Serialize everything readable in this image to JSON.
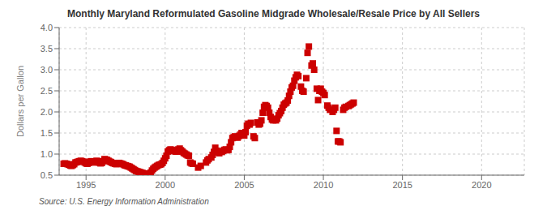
{
  "chart_data": {
    "type": "scatter",
    "title": "Monthly Maryland Reformulated Gasoline Midgrade Wholesale/Resale Price by All Sellers",
    "ylabel": "Dollars per Gallon",
    "source": "Source: U.S. Energy Information Administration",
    "color": "#cc0000",
    "marker": "square",
    "grid": true,
    "xlim": [
      1993.3,
      2022.7
    ],
    "ylim": [
      0.5,
      4.0
    ],
    "xticks": [
      1995,
      2000,
      2005,
      2010,
      2015,
      2020
    ],
    "yticks": [
      0.5,
      {
        "value": 1.0,
        "label": "1.0"
      },
      1.5,
      {
        "value": 2.0,
        "label": "2.0"
      },
      2.5,
      {
        "value": 3.0,
        "label": "3.0"
      },
      3.5,
      {
        "value": 4.0,
        "label": "4.0"
      }
    ],
    "x": [
      1993.583,
      1993.667,
      1993.75,
      1993.833,
      1993.917,
      1994.0,
      1994.083,
      1994.167,
      1994.25,
      1994.333,
      1994.417,
      1994.5,
      1994.583,
      1994.667,
      1994.75,
      1994.833,
      1994.917,
      1995.0,
      1995.083,
      1995.167,
      1995.25,
      1995.333,
      1995.417,
      1995.5,
      1995.583,
      1995.667,
      1995.75,
      1995.833,
      1995.917,
      1996.0,
      1996.083,
      1996.167,
      1996.25,
      1996.333,
      1996.417,
      1996.5,
      1996.583,
      1996.667,
      1996.75,
      1996.833,
      1996.917,
      1997.0,
      1997.083,
      1997.167,
      1997.25,
      1997.333,
      1997.417,
      1997.5,
      1997.583,
      1997.667,
      1997.75,
      1997.833,
      1997.917,
      1998.0,
      1998.083,
      1998.167,
      1998.25,
      1998.333,
      1998.417,
      1998.5,
      1998.583,
      1998.667,
      1998.75,
      1998.833,
      1998.917,
      1999.0,
      1999.083,
      1999.167,
      1999.25,
      1999.333,
      1999.417,
      1999.5,
      1999.583,
      1999.667,
      1999.75,
      1999.833,
      1999.917,
      2000.0,
      2000.083,
      2000.167,
      2000.25,
      2000.333,
      2000.417,
      2000.5,
      2000.583,
      2000.667,
      2000.75,
      2000.833,
      2000.917,
      2001.0,
      2001.083,
      2001.167,
      2001.25,
      2001.333,
      2001.417,
      2001.5,
      2001.583,
      2001.667,
      2001.75,
      2002.083,
      2002.25,
      2002.583,
      2002.667,
      2002.75,
      2002.917,
      2003.0,
      2003.083,
      2003.167,
      2003.25,
      2003.333,
      2003.417,
      2003.583,
      2003.667,
      2003.75,
      2003.833,
      2003.917,
      2004.0,
      2004.083,
      2004.167,
      2004.25,
      2004.333,
      2004.417,
      2004.5,
      2004.583,
      2004.667,
      2004.75,
      2004.833,
      2004.917,
      2005.0,
      2005.083,
      2005.167,
      2005.25,
      2005.333,
      2005.417,
      2005.583,
      2005.667,
      2005.833,
      2005.917,
      2006.0,
      2006.083,
      2006.167,
      2006.25,
      2006.333,
      2006.417,
      2006.5,
      2006.583,
      2006.667,
      2006.75,
      2006.833,
      2006.917,
      2007.0,
      2007.083,
      2007.167,
      2007.25,
      2007.333,
      2007.417,
      2007.5,
      2007.583,
      2007.667,
      2007.75,
      2007.833,
      2007.917,
      2008.0,
      2008.083,
      2008.167,
      2008.25,
      2008.333,
      2008.417,
      2008.583,
      2008.667,
      2008.75,
      2008.917,
      2009.0,
      2009.083,
      2009.25,
      2009.333,
      2009.417,
      2009.583,
      2009.667,
      2009.75,
      2009.833,
      2009.917,
      2010.0,
      2010.083,
      2010.25,
      2010.333,
      2010.417,
      2010.583,
      2010.667,
      2010.75,
      2010.833,
      2010.917,
      2011.0,
      2011.083,
      2011.25,
      2011.333,
      2011.417,
      2011.583,
      2011.667,
      2011.75,
      2011.833,
      2011.917
    ],
    "values": [
      0.77,
      0.78,
      0.77,
      0.76,
      0.75,
      0.73,
      0.72,
      0.74,
      0.76,
      0.8,
      0.81,
      0.82,
      0.83,
      0.84,
      0.83,
      0.82,
      0.8,
      0.78,
      0.77,
      0.79,
      0.82,
      0.83,
      0.82,
      0.8,
      0.82,
      0.84,
      0.83,
      0.8,
      0.78,
      0.79,
      0.83,
      0.88,
      0.87,
      0.86,
      0.84,
      0.82,
      0.81,
      0.79,
      0.78,
      0.77,
      0.76,
      0.77,
      0.79,
      0.78,
      0.77,
      0.76,
      0.74,
      0.73,
      0.72,
      0.71,
      0.7,
      0.68,
      0.66,
      0.64,
      0.62,
      0.6,
      0.59,
      0.58,
      0.57,
      0.56,
      0.55,
      0.54,
      0.53,
      0.52,
      0.52,
      0.53,
      0.56,
      0.61,
      0.65,
      0.68,
      0.7,
      0.72,
      0.74,
      0.75,
      0.76,
      0.79,
      0.84,
      0.9,
      0.96,
      1.06,
      1.09,
      1.11,
      1.1,
      1.08,
      1.07,
      1.06,
      1.06,
      1.11,
      1.13,
      1.09,
      1.06,
      1.03,
      1.01,
      0.99,
      0.97,
      0.96,
      0.8,
      0.78,
      0.77,
      0.68,
      0.72,
      0.8,
      0.85,
      0.88,
      0.92,
      0.98,
      1.05,
      1.15,
      1.08,
      1.05,
      1.02,
      1.05,
      1.08,
      1.1,
      1.11,
      1.09,
      1.1,
      1.17,
      1.28,
      1.38,
      1.4,
      1.42,
      1.4,
      1.39,
      1.43,
      1.46,
      1.5,
      1.46,
      1.44,
      1.52,
      1.67,
      1.72,
      1.7,
      1.74,
      1.42,
      1.38,
      1.75,
      1.7,
      1.72,
      1.8,
      1.98,
      2.12,
      2.16,
      2.14,
      2.1,
      1.98,
      1.88,
      1.82,
      1.8,
      1.82,
      1.8,
      1.84,
      1.92,
      1.97,
      2.02,
      2.1,
      2.17,
      2.2,
      2.22,
      2.27,
      2.38,
      2.48,
      2.58,
      2.62,
      2.74,
      2.82,
      2.88,
      2.85,
      2.6,
      2.5,
      2.48,
      2.8,
      3.4,
      3.55,
      3.1,
      3.15,
      3.0,
      2.55,
      2.28,
      2.5,
      2.55,
      2.48,
      2.45,
      2.4,
      2.15,
      2.1,
      2.05,
      2.0,
      2.05,
      2.1,
      1.55,
      1.3,
      1.3,
      1.28,
      2.05,
      2.1,
      2.12,
      2.14,
      2.16,
      2.18,
      2.2,
      2.22
    ]
  }
}
